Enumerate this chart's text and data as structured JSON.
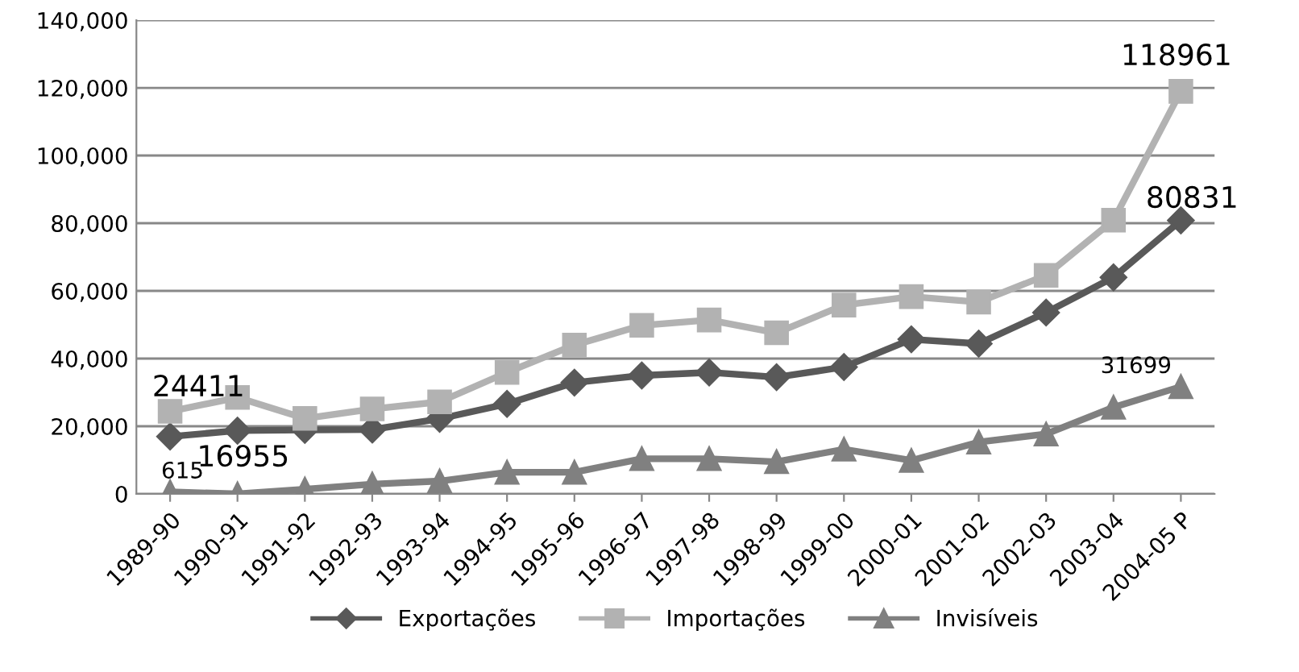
{
  "chart_data": {
    "type": "line",
    "categories": [
      "1989-90",
      "1990-91",
      "1991-92",
      "1992-93",
      "1993-94",
      "1994-95",
      "1995-96",
      "1996-97",
      "1997-98",
      "1998-99",
      "1999-00",
      "2000-01",
      "2001-02",
      "2002-03",
      "2003-04",
      "2004-05 P"
    ],
    "series": [
      {
        "name": "Exportações",
        "color": "#595959",
        "marker": "diamond",
        "values": [
          16955,
          18700,
          18900,
          19000,
          22200,
          26600,
          32900,
          35000,
          35900,
          34500,
          37500,
          45700,
          44400,
          53600,
          64000,
          80831
        ],
        "value_labels": [
          "16955",
          null,
          null,
          null,
          null,
          null,
          null,
          null,
          null,
          null,
          null,
          null,
          null,
          null,
          null,
          "80831"
        ]
      },
      {
        "name": "Importações",
        "color": "#b2b2b2",
        "marker": "square",
        "values": [
          24411,
          28500,
          22300,
          25100,
          27200,
          35900,
          44000,
          49800,
          51400,
          47600,
          55800,
          58300,
          56700,
          64600,
          80900,
          118961
        ],
        "value_labels": [
          "24411",
          null,
          null,
          null,
          null,
          null,
          null,
          null,
          null,
          null,
          null,
          null,
          null,
          null,
          null,
          "118961"
        ]
      },
      {
        "name": "Invisíveis",
        "color": "#808080",
        "marker": "triangle",
        "values": [
          615,
          0,
          1400,
          2900,
          3800,
          6400,
          6400,
          10400,
          10400,
          9500,
          13200,
          9900,
          15300,
          17700,
          25600,
          31699
        ],
        "value_labels": [
          "615",
          null,
          null,
          null,
          null,
          null,
          null,
          null,
          null,
          null,
          null,
          null,
          null,
          null,
          null,
          "31699"
        ]
      }
    ],
    "ylim": [
      0,
      140000
    ],
    "yticks": [
      {
        "value": 0,
        "label": "0"
      },
      {
        "value": 20000,
        "label": "20,000"
      },
      {
        "value": 40000,
        "label": "40,000"
      },
      {
        "value": 60000,
        "label": "60,000"
      },
      {
        "value": 80000,
        "label": "80,000"
      },
      {
        "value": 100000,
        "label": "100,000"
      },
      {
        "value": 120000,
        "label": "120,000"
      },
      {
        "value": 140000,
        "label": "140,000"
      }
    ],
    "grid": "y",
    "legend": "bottom",
    "line_style": "solid"
  }
}
